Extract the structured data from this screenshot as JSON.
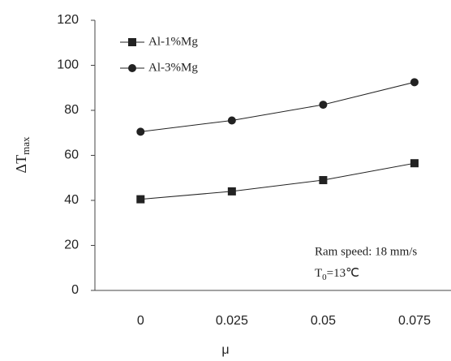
{
  "chart_data": {
    "type": "line",
    "x_label": "μ",
    "y_label": {
      "main": "ΔT",
      "sub": "max"
    },
    "x": [
      0,
      0.025,
      0.05,
      0.075
    ],
    "series": [
      {
        "name": "Al-1%Mg",
        "color": "#222222",
        "marker": "square",
        "values": [
          40.5,
          44,
          49,
          56.5
        ]
      },
      {
        "name": "Al-3%Mg",
        "color": "#222222",
        "marker": "circle",
        "values": [
          70.5,
          75.5,
          82.5,
          92.5
        ]
      }
    ],
    "xlim": [
      -0.0125,
      0.085
    ],
    "xticks": [
      0,
      0.025,
      0.05,
      0.075
    ],
    "ylim": [
      0,
      120
    ],
    "yticks": [
      0,
      20,
      40,
      60,
      80,
      100,
      120
    ],
    "legend": "upper left",
    "annotations": [
      {
        "text": "Ram speed: 18 mm/s"
      },
      {
        "main": "T",
        "sub": "0",
        "rest": "=13℃"
      }
    ]
  }
}
